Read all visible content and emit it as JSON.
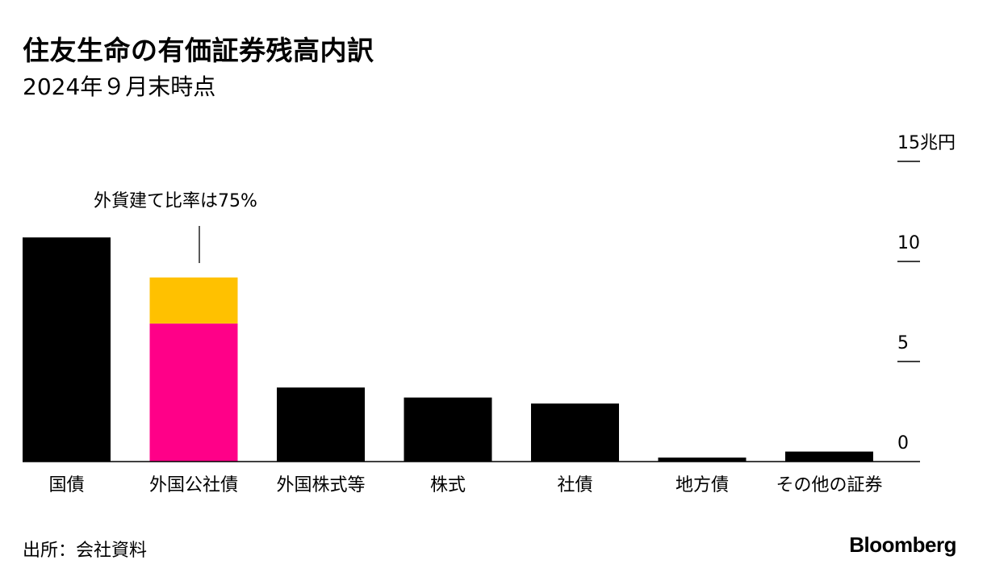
{
  "header": {
    "title": "住友生命の有価証券残高内訳",
    "subtitle": "2024年９月末時点"
  },
  "footer": {
    "source": "出所：会社資料",
    "brand": "Bloomberg"
  },
  "chart_data": {
    "type": "bar",
    "title": "住友生命の有価証券残高内訳",
    "subtitle": "2024年９月末時点",
    "unit": "兆円",
    "categories": [
      "国債",
      "外国公社債",
      "外国株式等",
      "株式",
      "社債",
      "地方債",
      "その他の証券"
    ],
    "series": [
      {
        "name": "",
        "values": [
          11.2,
          6.9,
          3.7,
          3.2,
          2.9,
          0.2,
          0.5
        ],
        "color": "#000000"
      }
    ],
    "stacked_segments": {
      "category": "外国公社債",
      "segments": [
        {
          "value": 6.9,
          "color": "#FF0088"
        },
        {
          "value": 2.3,
          "color": "#FFC100"
        }
      ],
      "total": 9.2
    },
    "annotation": {
      "text": "外貨建て比率は75%",
      "category": "外国公社債"
    },
    "y_axis": {
      "min": 0,
      "max": 15,
      "position": "right",
      "ticks": [
        {
          "value": 15,
          "label": "15兆円"
        },
        {
          "value": 10,
          "label": "10"
        },
        {
          "value": 5,
          "label": "5"
        },
        {
          "value": 0,
          "label": "0"
        }
      ]
    },
    "grid": false,
    "legend": "none"
  }
}
